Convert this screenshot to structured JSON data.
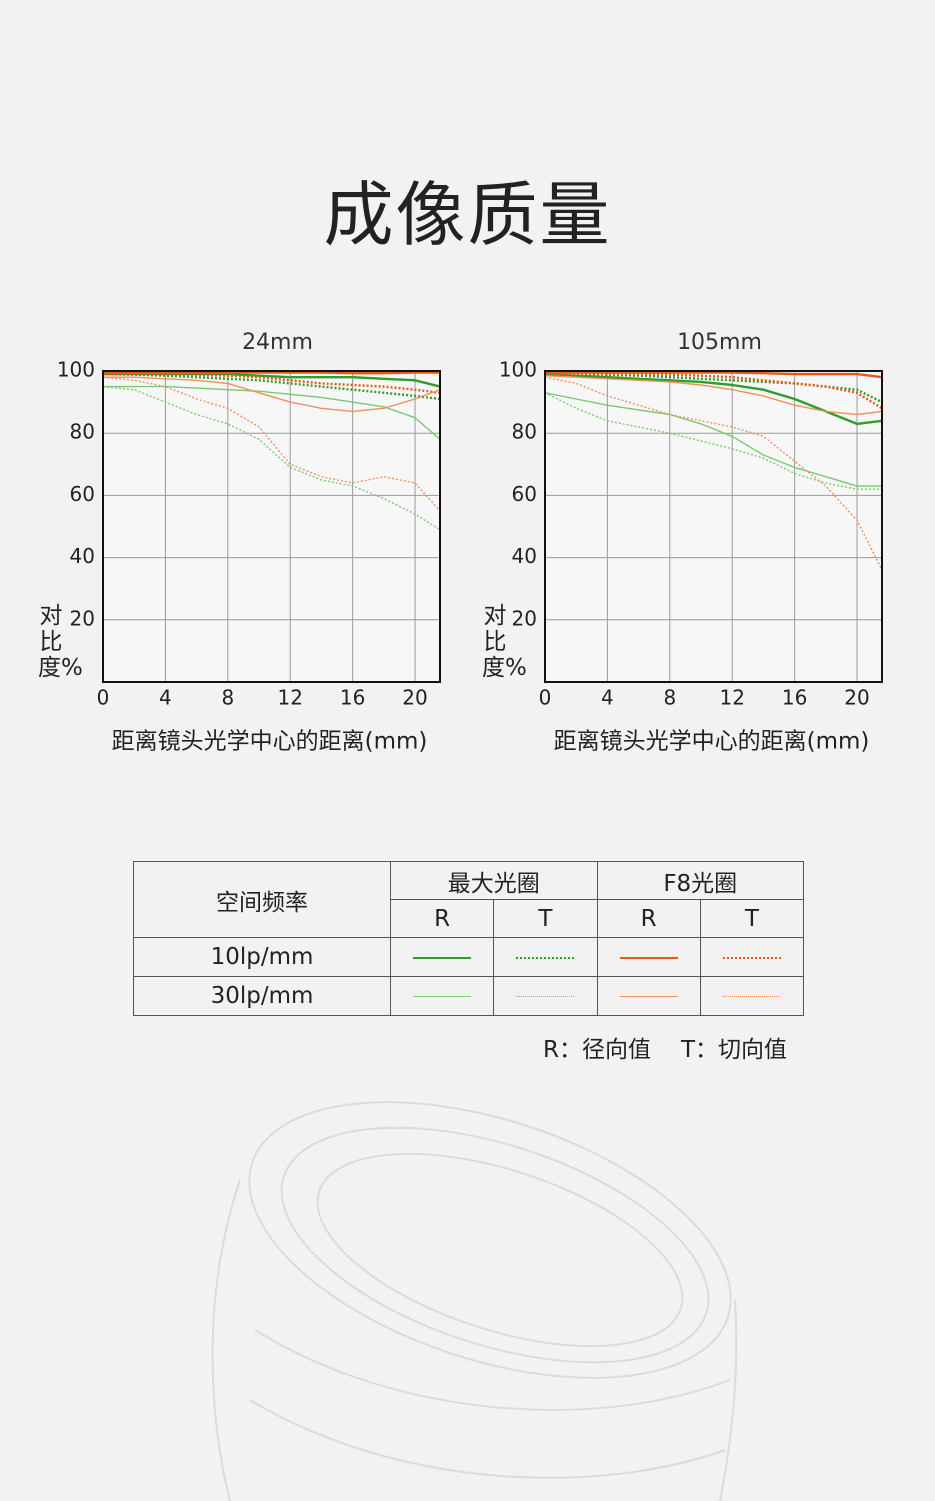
{
  "page_title": "成像质量",
  "chart_data": [
    {
      "type": "line",
      "title": "24mm",
      "x_label": "距离镜头光学中心的距离(mm)",
      "y_label": "对比度%",
      "x": [
        0,
        2,
        4,
        6,
        8,
        10,
        12,
        14,
        16,
        18,
        20,
        21.6
      ],
      "xlim": [
        0,
        21.6
      ],
      "xticks": [
        0,
        4,
        8,
        12,
        16,
        20
      ],
      "ylim": [
        0,
        100
      ],
      "yticks": [
        20,
        40,
        60,
        80,
        100
      ],
      "grid": true,
      "series": [
        {
          "color": "#2f9e2a",
          "width": 2.4,
          "dotted": false,
          "values": [
            99,
            99,
            99,
            99,
            99,
            98.5,
            98,
            98,
            98,
            97.5,
            97,
            95
          ]
        },
        {
          "color": "#2f9e2a",
          "width": 2.4,
          "dotted": true,
          "values": [
            99,
            98.8,
            98.5,
            98,
            97.5,
            97,
            96,
            95,
            94,
            93,
            92,
            91
          ]
        },
        {
          "color": "#e45a1a",
          "width": 2.4,
          "dotted": false,
          "values": [
            99.5,
            99.5,
            99.5,
            99.5,
            99.5,
            99.5,
            99.5,
            99.5,
            99.3,
            99.3,
            99.5,
            99.5
          ]
        },
        {
          "color": "#e45a1a",
          "width": 2.4,
          "dotted": true,
          "values": [
            99,
            99,
            99,
            98.8,
            98.5,
            98,
            97,
            96,
            95.5,
            95,
            94,
            93
          ]
        },
        {
          "color": "#7ac972",
          "width": 1.4,
          "dotted": false,
          "values": [
            95,
            95,
            95,
            94.5,
            94,
            93.5,
            92.5,
            91.5,
            90,
            88.5,
            85,
            78
          ]
        },
        {
          "color": "#7ac972",
          "width": 1.4,
          "dotted": true,
          "values": [
            95,
            94,
            90,
            86,
            83,
            78,
            69,
            65,
            63,
            59,
            54,
            49
          ]
        },
        {
          "color": "#f09060",
          "width": 1.4,
          "dotted": false,
          "values": [
            98,
            98,
            97.5,
            97,
            96,
            93,
            90,
            88,
            87,
            88,
            91,
            94
          ]
        },
        {
          "color": "#f09060",
          "width": 1.4,
          "dotted": true,
          "values": [
            98,
            97,
            95,
            91,
            88,
            82,
            70,
            66,
            64,
            66,
            64,
            55
          ]
        }
      ]
    },
    {
      "type": "line",
      "title": "105mm",
      "x_label": "距离镜头光学中心的距离(mm)",
      "y_label": "对比度%",
      "x": [
        0,
        2,
        4,
        6,
        8,
        10,
        12,
        14,
        16,
        18,
        20,
        21.6
      ],
      "xlim": [
        0,
        21.6
      ],
      "xticks": [
        0,
        4,
        8,
        12,
        16,
        20
      ],
      "ylim": [
        0,
        100
      ],
      "yticks": [
        20,
        40,
        60,
        80,
        100
      ],
      "grid": true,
      "series": [
        {
          "color": "#2f9e2a",
          "width": 2.4,
          "dotted": false,
          "values": [
            99,
            98.5,
            98,
            97.5,
            97,
            96.5,
            95.5,
            94,
            91,
            87,
            83,
            84
          ]
        },
        {
          "color": "#2f9e2a",
          "width": 2.4,
          "dotted": true,
          "values": [
            99,
            99,
            98.8,
            98.5,
            98,
            97.5,
            97,
            96.5,
            96,
            95,
            94,
            90
          ]
        },
        {
          "color": "#e45a1a",
          "width": 2.4,
          "dotted": false,
          "values": [
            99.5,
            99.5,
            99.5,
            99.5,
            99.5,
            99.5,
            99.5,
            99.3,
            99,
            99,
            99,
            98
          ]
        },
        {
          "color": "#e45a1a",
          "width": 2.4,
          "dotted": true,
          "values": [
            99,
            99,
            99,
            99,
            98.8,
            98.5,
            98,
            97,
            96,
            95,
            93,
            88
          ]
        },
        {
          "color": "#7ac972",
          "width": 1.4,
          "dotted": false,
          "values": [
            93,
            91,
            89,
            87.5,
            86,
            83,
            79,
            73,
            69,
            66,
            63,
            63
          ]
        },
        {
          "color": "#7ac972",
          "width": 1.4,
          "dotted": true,
          "values": [
            93,
            88,
            84,
            82,
            80,
            77.5,
            75,
            72,
            67,
            64,
            62,
            62
          ]
        },
        {
          "color": "#f09060",
          "width": 1.4,
          "dotted": false,
          "values": [
            98.5,
            98,
            97.5,
            97,
            96.5,
            95.5,
            94,
            92,
            89,
            87,
            86,
            87
          ]
        },
        {
          "color": "#f09060",
          "width": 1.4,
          "dotted": true,
          "values": [
            98,
            96,
            92,
            89,
            86,
            84,
            82,
            79,
            71,
            63,
            52,
            36
          ]
        }
      ]
    }
  ],
  "legend_table": {
    "header": "空间频率",
    "groups": [
      "最大光圈",
      "F8光圈"
    ],
    "subheaders": [
      "R",
      "T",
      "R",
      "T"
    ],
    "rows": [
      "10lp/mm",
      "30lp/mm"
    ]
  },
  "notes": [
    "R：径向值",
    "T：切向值"
  ]
}
